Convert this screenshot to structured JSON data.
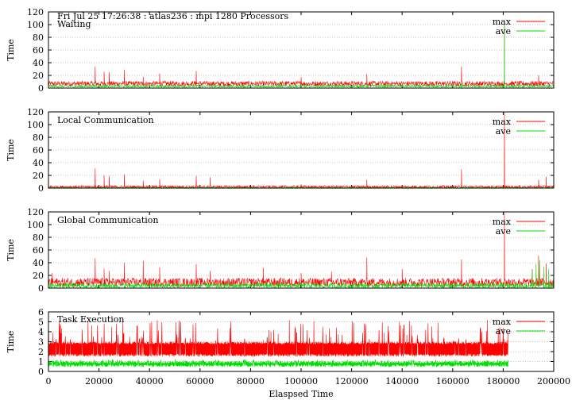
{
  "header": {
    "title": "Fri Jul 25 17:26:38 : atlas236 : mpi 1280 Processors"
  },
  "colors": {
    "max": "#ff0000",
    "ave": "#00dd00",
    "grid": "#b0b0b0"
  },
  "chart_data": [
    {
      "type": "line",
      "title": "Waiting",
      "xlabel": "",
      "ylabel": "Time",
      "xlim": [
        0,
        200000
      ],
      "ylim": [
        0,
        120
      ],
      "yticks": [
        "0",
        "20",
        "40",
        "60",
        "80",
        "100",
        "120"
      ],
      "grid": true,
      "legend_position": "top-right",
      "series": [
        {
          "name": "max",
          "color": "#ff0000",
          "baseline": 7,
          "noise": 4,
          "spikes": [
            [
              18500,
              34
            ],
            [
              22000,
              26
            ],
            [
              24000,
              25
            ],
            [
              30000,
              29
            ],
            [
              37500,
              18
            ],
            [
              44000,
              23
            ],
            [
              58500,
              27
            ],
            [
              100000,
              17
            ],
            [
              126000,
              22
            ],
            [
              163500,
              34
            ],
            [
              180500,
              99
            ],
            [
              194000,
              20
            ]
          ]
        },
        {
          "name": "ave",
          "color": "#00dd00",
          "baseline": 3,
          "noise": 2,
          "spikes": [
            [
              18500,
              8
            ],
            [
              58500,
              6
            ],
            [
              126000,
              6
            ],
            [
              163500,
              9
            ],
            [
              180500,
              100
            ]
          ]
        }
      ]
    },
    {
      "type": "line",
      "title": "Local Communication",
      "xlabel": "",
      "ylabel": "Time",
      "xlim": [
        0,
        200000
      ],
      "ylim": [
        0,
        120
      ],
      "yticks": [
        "0",
        "20",
        "40",
        "60",
        "80",
        "100",
        "120"
      ],
      "grid": true,
      "legend_position": "top-right",
      "series": [
        {
          "name": "max",
          "color": "#ff0000",
          "baseline": 2,
          "noise": 2,
          "spikes": [
            [
              18500,
              31
            ],
            [
              22000,
              20
            ],
            [
              24000,
              19
            ],
            [
              30000,
              22
            ],
            [
              37500,
              12
            ],
            [
              44000,
              14
            ],
            [
              58500,
              19
            ],
            [
              64000,
              17
            ],
            [
              100000,
              6
            ],
            [
              126000,
              13
            ],
            [
              163500,
              30
            ],
            [
              180500,
              120
            ],
            [
              194000,
              13
            ],
            [
              197000,
              18
            ]
          ]
        },
        {
          "name": "ave",
          "color": "#00dd00",
          "baseline": 0.6,
          "noise": 0.6,
          "spikes": []
        }
      ]
    },
    {
      "type": "line",
      "title": "Global Communication",
      "xlabel": "",
      "ylabel": "Time",
      "xlim": [
        0,
        200000
      ],
      "ylim": [
        0,
        120
      ],
      "yticks": [
        "0",
        "20",
        "40",
        "60",
        "80",
        "100",
        "120"
      ],
      "grid": true,
      "legend_position": "top-right",
      "series": [
        {
          "name": "max",
          "color": "#ff0000",
          "baseline": 9,
          "noise": 7,
          "spikes": [
            [
              1500,
              24
            ],
            [
              18500,
              47
            ],
            [
              22000,
              31
            ],
            [
              24000,
              27
            ],
            [
              30000,
              40
            ],
            [
              37500,
              43
            ],
            [
              44000,
              33
            ],
            [
              58500,
              38
            ],
            [
              64000,
              27
            ],
            [
              85000,
              32
            ],
            [
              100000,
              24
            ],
            [
              112000,
              26
            ],
            [
              126000,
              48
            ],
            [
              140000,
              30
            ],
            [
              163500,
              45
            ],
            [
              180500,
              120
            ],
            [
              191500,
              30
            ],
            [
              194000,
              51
            ],
            [
              197000,
              39
            ]
          ]
        },
        {
          "name": "ave",
          "color": "#00dd00",
          "baseline": 4,
          "noise": 4,
          "spikes": [
            [
              86000,
              10
            ],
            [
              191500,
              28
            ],
            [
              193000,
              38
            ],
            [
              194500,
              44
            ],
            [
              196000,
              34
            ],
            [
              198000,
              30
            ]
          ]
        }
      ]
    },
    {
      "type": "line",
      "title": "Task Execution",
      "xlabel": "Elaspsed Time",
      "ylabel": "Time",
      "xlim": [
        0,
        200000
      ],
      "ylim": [
        0,
        6
      ],
      "yticks": [
        "0",
        "1",
        "2",
        "3",
        "4",
        "5",
        "6"
      ],
      "xticks": [
        "0",
        "20000",
        "40000",
        "60000",
        "80000",
        "100000",
        "120000",
        "140000",
        "160000",
        "180000",
        "200000"
      ],
      "grid": true,
      "legend_position": "top-right",
      "series": [
        {
          "name": "max",
          "color": "#ff0000",
          "xmax": 182000,
          "band_low": 1.5,
          "band_high": 3.0,
          "peak": 5.2
        },
        {
          "name": "ave",
          "color": "#00dd00",
          "xmax": 182000,
          "band_low": 0.45,
          "band_high": 1.05,
          "peak": 1.2
        }
      ]
    }
  ]
}
